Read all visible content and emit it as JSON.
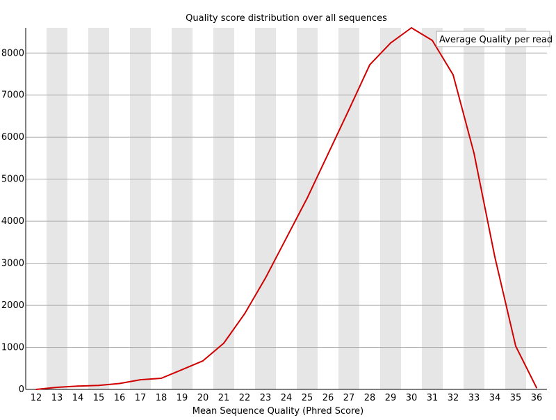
{
  "chart_data": {
    "type": "line",
    "title": "Quality score distribution over all sequences",
    "xlabel": "Mean Sequence Quality (Phred Score)",
    "ylabel": "",
    "categories": [
      "12",
      "13",
      "14",
      "15",
      "16",
      "17",
      "18",
      "19",
      "20",
      "21",
      "22",
      "23",
      "24",
      "25",
      "26",
      "27",
      "28",
      "29",
      "30",
      "31",
      "32",
      "33",
      "34",
      "35",
      "36"
    ],
    "series": [
      {
        "name": "Average Quality per read",
        "values": [
          0,
          50,
          80,
          95,
          140,
          230,
          265,
          470,
          680,
          1100,
          1800,
          2650,
          3600,
          4550,
          5600,
          6650,
          7720,
          8240,
          8600,
          8300,
          7480,
          5620,
          3150,
          1030,
          40
        ]
      }
    ],
    "yticks": [
      "0",
      "1000",
      "2000",
      "3000",
      "4000",
      "5000",
      "6000",
      "7000",
      "8000"
    ],
    "ylim": [
      0,
      8600
    ],
    "legend_position": "top-right",
    "colors": {
      "line": "#d00000",
      "band": "#e6e6e6",
      "grid": "#aaaaaa",
      "axis": "#000000",
      "legend_border": "#aaaaaa"
    }
  }
}
